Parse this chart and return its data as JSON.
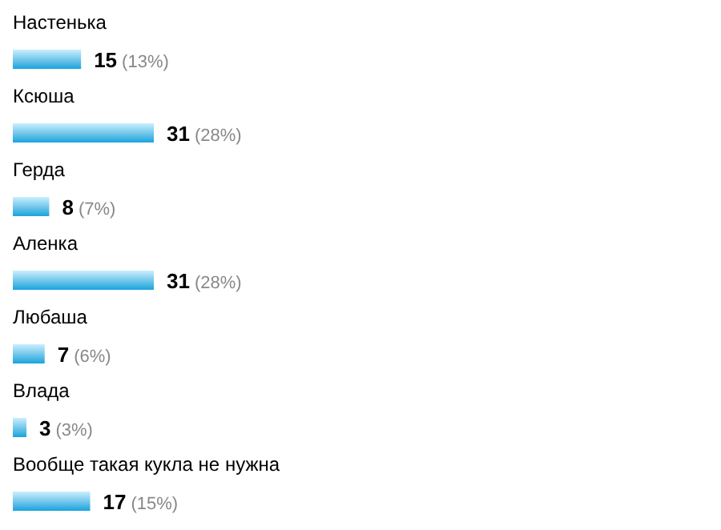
{
  "chart_data": {
    "type": "bar",
    "orientation": "horizontal",
    "categories": [
      "Настенька",
      "Ксюша",
      "Герда",
      "Аленка",
      "Любаша",
      "Влада",
      "Вообще такая кукла не нужна"
    ],
    "values": [
      15,
      31,
      8,
      31,
      7,
      3,
      17
    ],
    "value_labels": [
      "15 (13%)",
      "31 (28%)",
      "8 (7%)",
      "31 (28%)",
      "7 (6%)",
      "3 (3%)",
      "17 (15%)"
    ],
    "color": "#1aa3dd"
  }
}
